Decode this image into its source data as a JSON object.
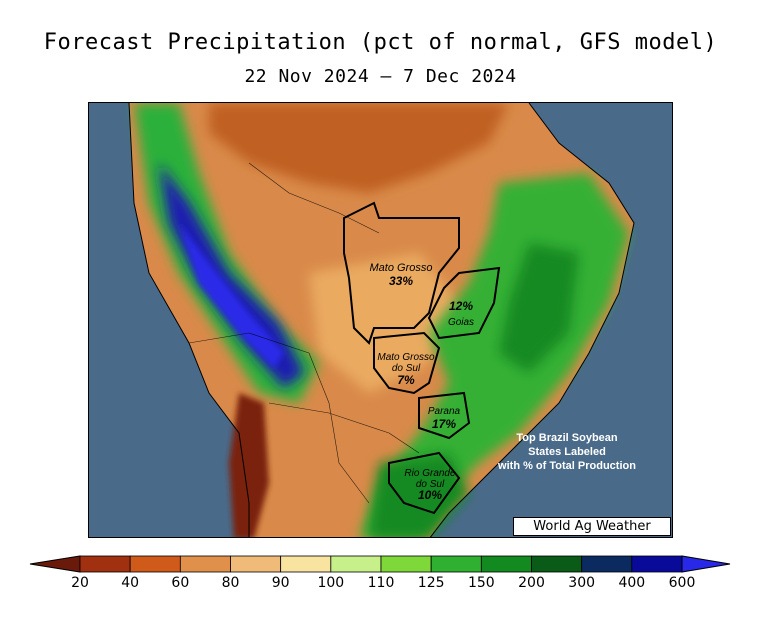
{
  "title": "Forecast Precipitation (pct of normal, GFS model)",
  "subtitle": "22 Nov 2024 – 7 Dec 2024",
  "credit": "World Ag Weather",
  "note": [
    "Top Brazil Soybean",
    "States Labeled",
    "with % of Total Production"
  ],
  "states": [
    {
      "name": "Mato Grosso",
      "pct": "33%"
    },
    {
      "name": "Goias",
      "pct": "12%"
    },
    {
      "name": "Mato Grosso",
      "name2": "do Sul",
      "pct": "7%"
    },
    {
      "name": "Parana",
      "pct": "17%"
    },
    {
      "name": "Rio Grande",
      "name2": "do Sul",
      "pct": "10%"
    }
  ],
  "legend": {
    "ticks": [
      "20",
      "40",
      "60",
      "80",
      "90",
      "100",
      "110",
      "125",
      "150",
      "200",
      "300",
      "400",
      "600"
    ],
    "colors": [
      "#6a1a0a",
      "#a0300f",
      "#d05a1a",
      "#e0904a",
      "#f0bb78",
      "#f8e3a0",
      "#c8f08a",
      "#7ed83a",
      "#30b030",
      "#138a20",
      "#0a5a18",
      "#0a2a60",
      "#0a0a9a",
      "#2828e8"
    ]
  }
}
